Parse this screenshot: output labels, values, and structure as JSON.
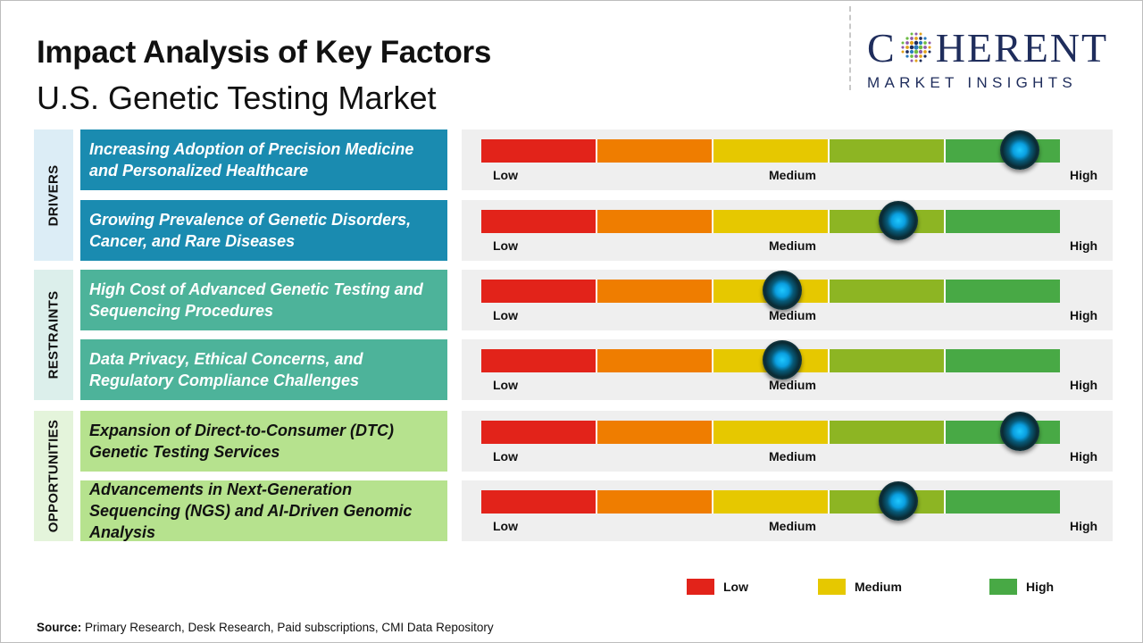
{
  "header": {
    "title": "Impact Analysis of Key Factors",
    "subtitle": "U.S. Genetic Testing Market"
  },
  "logo": {
    "wordmark_left": "C",
    "wordmark_right": "HERENT",
    "tagline": "MARKET INSIGHTS"
  },
  "sections": [
    {
      "label": "DRIVERS",
      "color": "#dcedf6"
    },
    {
      "label": "RESTRAINTS",
      "color": "#dcefeb"
    },
    {
      "label": "OPPORTUNITIES",
      "color": "#e4f4db"
    }
  ],
  "chart_data": {
    "type": "bar",
    "scale_labels": {
      "low": "Low",
      "medium": "Medium",
      "high": "High"
    },
    "scale_range": [
      0,
      1
    ],
    "segment_colors": [
      "#e2231a",
      "#ef7d00",
      "#e6c800",
      "#8db523",
      "#48a945"
    ],
    "factors": [
      {
        "section": "DRIVERS",
        "label": "Increasing Adoption of Precision Medicine and Personalized Healthcare",
        "impact": 0.93,
        "box_color": "#1a8bb0",
        "text_color": "#ffffff"
      },
      {
        "section": "DRIVERS",
        "label": "Growing Prevalence of Genetic Disorders, Cancer, and Rare Diseases",
        "impact": 0.72,
        "box_color": "#1a8bb0",
        "text_color": "#ffffff"
      },
      {
        "section": "RESTRAINTS",
        "label": "High Cost of Advanced Genetic Testing and Sequencing Procedures",
        "impact": 0.52,
        "box_color": "#4db39a",
        "text_color": "#ffffff"
      },
      {
        "section": "RESTRAINTS",
        "label": "Data Privacy, Ethical Concerns, and Regulatory Compliance Challenges",
        "impact": 0.52,
        "box_color": "#4db39a",
        "text_color": "#ffffff"
      },
      {
        "section": "OPPORTUNITIES",
        "label": "Expansion of Direct-to-Consumer (DTC) Genetic Testing Services",
        "impact": 0.93,
        "box_color": "#b6e28e",
        "text_color": "#111111"
      },
      {
        "section": "OPPORTUNITIES",
        "label": "Advancements in Next-Generation Sequencing (NGS) and AI-Driven Genomic Analysis",
        "impact": 0.72,
        "box_color": "#b6e28e",
        "text_color": "#111111"
      }
    ],
    "legend": [
      {
        "label": "Low",
        "color": "#e2231a"
      },
      {
        "label": "Medium",
        "color": "#e6c800"
      },
      {
        "label": "High",
        "color": "#48a945"
      }
    ]
  },
  "footer": {
    "source_label": "Source:",
    "source_text": " Primary Research, Desk Research, Paid subscriptions, CMI Data Repository"
  }
}
